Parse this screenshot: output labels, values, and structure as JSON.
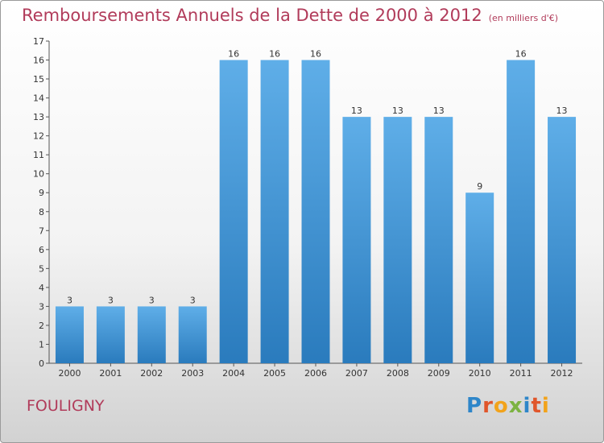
{
  "header": {
    "title": "Remboursements Annuels de la Dette de 2000 à 2012",
    "unit": "(en milliers d'€)"
  },
  "footer": {
    "commune": "FOULIGNY",
    "brand": [
      "P",
      "r",
      "o",
      "x",
      "i",
      "t",
      "i"
    ],
    "brand_colors": [
      "#2e86c9",
      "#e0562b",
      "#f2a31b",
      "#7cb342",
      "#2e86c9",
      "#e0562b",
      "#f2a31b"
    ]
  },
  "colors": {
    "title": "#b13b5a",
    "bar_light": "#5faee8",
    "bar_dark": "#2a7bbd",
    "axis": "#555555"
  },
  "chart_data": {
    "type": "bar",
    "title": "Remboursements Annuels de la Dette de 2000 à 2012",
    "ylabel": "en milliers d'€",
    "xlabel": "",
    "categories": [
      "2000",
      "2001",
      "2002",
      "2003",
      "2004",
      "2005",
      "2006",
      "2007",
      "2008",
      "2009",
      "2010",
      "2011",
      "2012"
    ],
    "values": [
      3,
      3,
      3,
      3,
      16,
      16,
      16,
      13,
      13,
      13,
      9,
      16,
      13
    ],
    "ylim": [
      0,
      17
    ],
    "yticks": [
      0,
      1,
      2,
      3,
      4,
      5,
      6,
      7,
      8,
      9,
      10,
      11,
      12,
      13,
      14,
      15,
      16,
      17
    ],
    "grid": false,
    "legend": "none"
  }
}
